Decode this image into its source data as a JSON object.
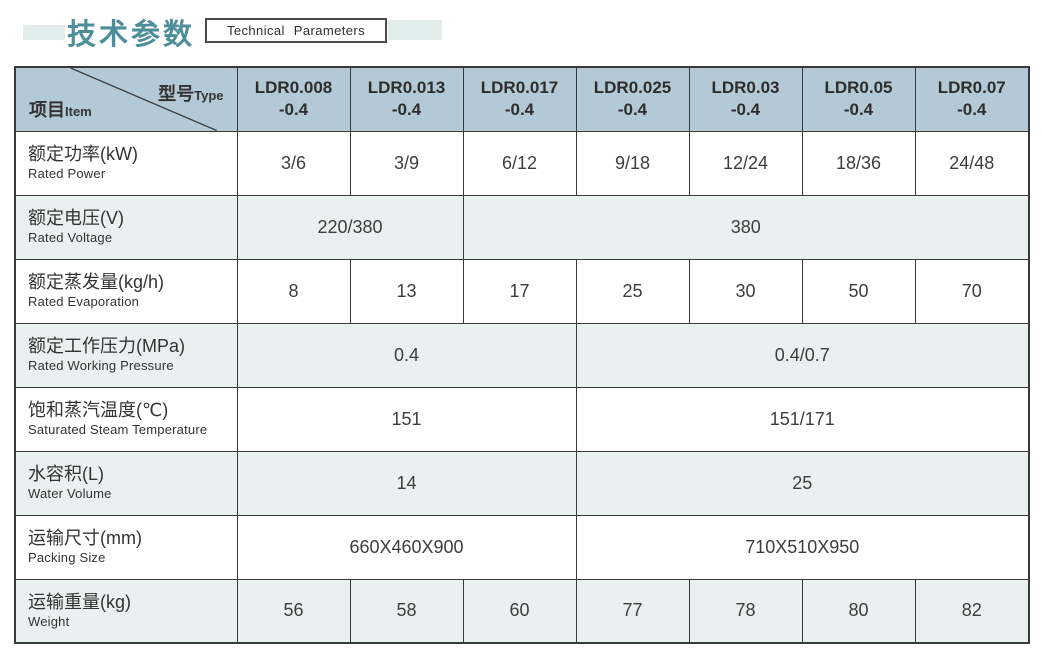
{
  "header": {
    "title_cn": "技术参数",
    "title_en": "Technical Parameters"
  },
  "table": {
    "corner": {
      "type_cn": "型号",
      "type_en": "Type",
      "item_cn": "项目",
      "item_en": "Item"
    },
    "models": [
      {
        "line1": "LDR0.008",
        "line2": "-0.4"
      },
      {
        "line1": "LDR0.013",
        "line2": "-0.4"
      },
      {
        "line1": "LDR0.017",
        "line2": "-0.4"
      },
      {
        "line1": "LDR0.025",
        "line2": "-0.4"
      },
      {
        "line1": "LDR0.03",
        "line2": "-0.4"
      },
      {
        "line1": "LDR0.05",
        "line2": "-0.4"
      },
      {
        "line1": "LDR0.07",
        "line2": "-0.4"
      }
    ],
    "rows": [
      {
        "label_cn": "额定功率(kW)",
        "label_en": "Rated Power",
        "cells": [
          {
            "text": "3/6",
            "span": 1
          },
          {
            "text": "3/9",
            "span": 1
          },
          {
            "text": "6/12",
            "span": 1
          },
          {
            "text": "9/18",
            "span": 1
          },
          {
            "text": "12/24",
            "span": 1
          },
          {
            "text": "18/36",
            "span": 1
          },
          {
            "text": "24/48",
            "span": 1
          }
        ]
      },
      {
        "label_cn": "额定电压(V)",
        "label_en": "Rated Voltage",
        "cells": [
          {
            "text": "220/380",
            "span": 2
          },
          {
            "text": "380",
            "span": 5
          }
        ]
      },
      {
        "label_cn": "额定蒸发量(kg/h)",
        "label_en": "Rated Evaporation",
        "cells": [
          {
            "text": "8",
            "span": 1
          },
          {
            "text": "13",
            "span": 1
          },
          {
            "text": "17",
            "span": 1
          },
          {
            "text": "25",
            "span": 1
          },
          {
            "text": "30",
            "span": 1
          },
          {
            "text": "50",
            "span": 1
          },
          {
            "text": "70",
            "span": 1
          }
        ]
      },
      {
        "label_cn": "额定工作压力(MPa)",
        "label_en": "Rated Working Pressure",
        "cells": [
          {
            "text": "0.4",
            "span": 3
          },
          {
            "text": "0.4/0.7",
            "span": 4
          }
        ]
      },
      {
        "label_cn": "饱和蒸汽温度(℃)",
        "label_en": "Saturated Steam Temperature",
        "cells": [
          {
            "text": "151",
            "span": 3
          },
          {
            "text": "151/171",
            "span": 4
          }
        ]
      },
      {
        "label_cn": "水容积(L)",
        "label_en": "Water Volume",
        "cells": [
          {
            "text": "14",
            "span": 3
          },
          {
            "text": "25",
            "span": 4
          }
        ]
      },
      {
        "label_cn": "运输尺寸(mm)",
        "label_en": "Packing Size",
        "cells": [
          {
            "text": "660X460X900",
            "span": 3
          },
          {
            "text": "710X510X950",
            "span": 4
          }
        ]
      },
      {
        "label_cn": "运输重量(kg)",
        "label_en": "Weight",
        "cells": [
          {
            "text": "56",
            "span": 1
          },
          {
            "text": "58",
            "span": 1
          },
          {
            "text": "60",
            "span": 1
          },
          {
            "text": "77",
            "span": 1
          },
          {
            "text": "78",
            "span": 1
          },
          {
            "text": "80",
            "span": 1
          },
          {
            "text": "82",
            "span": 1
          }
        ]
      }
    ]
  },
  "colors": {
    "title_teal": "#4d8e9a",
    "header_cell_bg": "#b3c9d5",
    "alt_row_bg": "#e8f1f0",
    "banner_bg": "#e0edeb",
    "border_dark": "#3a3a3a"
  }
}
